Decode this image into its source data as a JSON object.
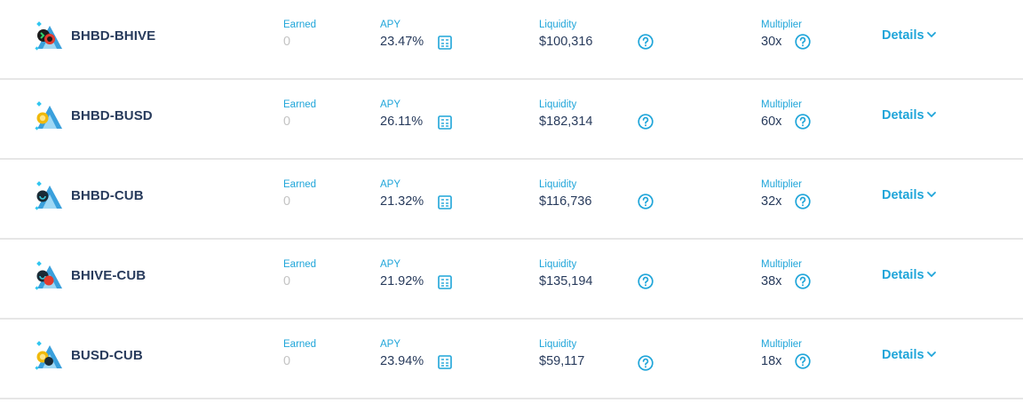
{
  "labels": {
    "earned": "Earned",
    "apy": "APY",
    "liquidity": "Liquidity",
    "multiplier": "Multiplier",
    "details": "Details"
  },
  "colors": {
    "accent": "#1fa5d9",
    "text_dark": "#283b5c",
    "muted": "#c4c4c4",
    "divider": "#e6e6e6"
  },
  "icons": {
    "calculator": "calculator-icon",
    "help": "question-circle-icon",
    "details": "chevron-down-icon"
  },
  "farms": [
    {
      "pair": "BHBD-BHIVE",
      "earned": "0",
      "apy": "23.47%",
      "liquidity": "$100,316",
      "multiplier": "30x",
      "token_icon": "bhbd-bhive-token-icon"
    },
    {
      "pair": "BHBD-BUSD",
      "earned": "0",
      "apy": "26.11%",
      "liquidity": "$182,314",
      "multiplier": "60x",
      "token_icon": "bhbd-busd-token-icon"
    },
    {
      "pair": "BHBD-CUB",
      "earned": "0",
      "apy": "21.32%",
      "liquidity": "$116,736",
      "multiplier": "32x",
      "token_icon": "bhbd-cub-token-icon"
    },
    {
      "pair": "BHIVE-CUB",
      "earned": "0",
      "apy": "21.92%",
      "liquidity": "$135,194",
      "multiplier": "38x",
      "token_icon": "bhive-cub-token-icon"
    },
    {
      "pair": "BUSD-CUB",
      "earned": "0",
      "apy": "23.94%",
      "liquidity": "$59,117",
      "multiplier": "18x",
      "token_icon": "busd-cub-token-icon"
    }
  ]
}
